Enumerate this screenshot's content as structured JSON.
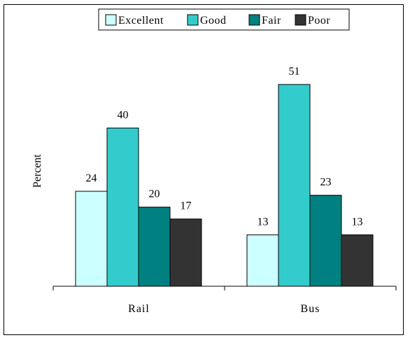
{
  "chart_data": {
    "type": "bar",
    "categories": [
      "Rail",
      "Bus"
    ],
    "series": [
      {
        "name": "Excellent",
        "values": [
          24,
          13
        ],
        "color": "#ccffff"
      },
      {
        "name": "Good",
        "values": [
          40,
          51
        ],
        "color": "#33cccc"
      },
      {
        "name": "Fair",
        "values": [
          20,
          23
        ],
        "color": "#008080"
      },
      {
        "name": "Poor",
        "values": [
          17,
          13
        ],
        "color": "#333333"
      }
    ],
    "title": "",
    "xlabel": "",
    "ylabel": "Percent",
    "ylim": [
      0,
      60
    ],
    "grid": false,
    "legend_position": "top",
    "data_labels": true
  }
}
